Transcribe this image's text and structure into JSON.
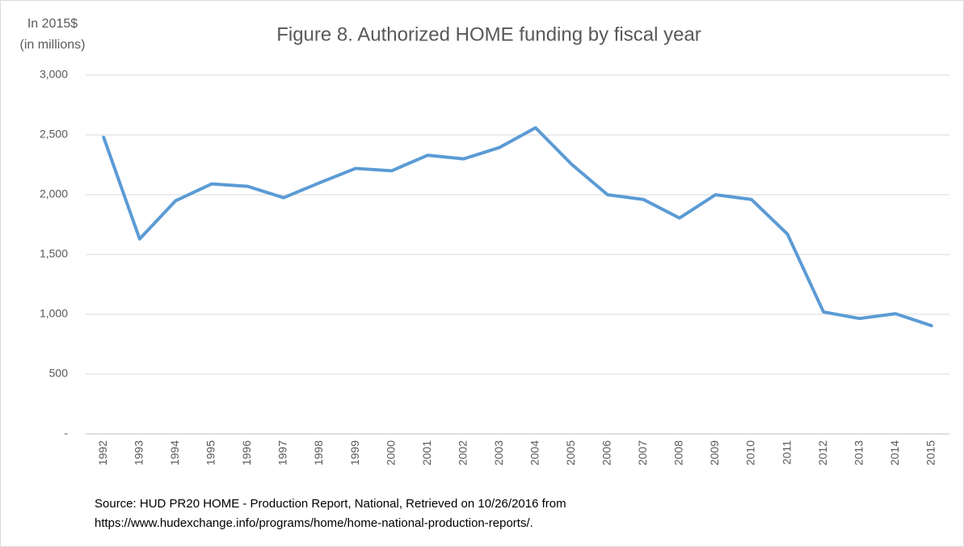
{
  "chart_data": {
    "type": "line",
    "title": "Figure 8. Authorized HOME funding by fiscal year",
    "y_axis_label": [
      "In 2015$",
      "(in millions)"
    ],
    "source_note": [
      "Source: HUD PR20 HOME - Production Report, National, Retrieved on 10/26/2016 from",
      "https://www.hudexchange.info/programs/home/home-national-production-reports/."
    ],
    "categories": [
      "1992",
      "1993",
      "1994",
      "1995",
      "1996",
      "1997",
      "1998",
      "1999",
      "2000",
      "2001",
      "2002",
      "2003",
      "2004",
      "2005",
      "2006",
      "2007",
      "2008",
      "2009",
      "2010",
      "2011",
      "2012",
      "2013",
      "2014",
      "2015"
    ],
    "series": [
      {
        "color": "#5b9bd5",
        "values": [
          2480,
          1630,
          1950,
          2090,
          2070,
          1975,
          2100,
          2220,
          2200,
          2330,
          2300,
          2395,
          2560,
          2255,
          2000,
          1960,
          1805,
          2000,
          1960,
          1670,
          1020,
          965,
          1005,
          905
        ]
      }
    ],
    "ylim": [
      0,
      3000
    ],
    "yticks": [
      {
        "value": 0,
        "label": "-"
      },
      500,
      {
        "value": 1000,
        "label": "1,000"
      },
      {
        "value": 1500,
        "label": "1,500"
      },
      {
        "value": 2000,
        "label": "2,000"
      },
      {
        "value": 2500,
        "label": "2,500"
      },
      {
        "value": 3000,
        "label": "3,000"
      }
    ],
    "grid": true
  }
}
